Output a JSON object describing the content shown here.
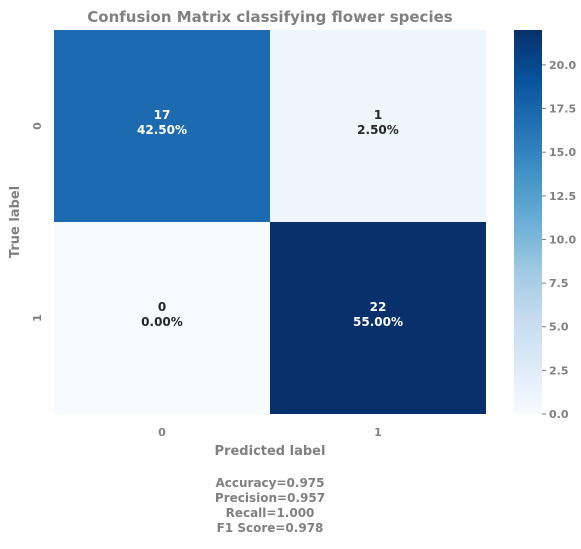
{
  "chart_data": {
    "type": "heatmap",
    "title": "Confusion Matrix classifying flower species",
    "xlabel": "Predicted label",
    "ylabel": "True label",
    "x_categories": [
      "0",
      "1"
    ],
    "y_categories": [
      "0",
      "1"
    ],
    "cells": [
      [
        {
          "count": "17",
          "percent": "42.50%",
          "value": 17
        },
        {
          "count": "1",
          "percent": "2.50%",
          "value": 1
        }
      ],
      [
        {
          "count": "0",
          "percent": "0.00%",
          "value": 0
        },
        {
          "count": "22",
          "percent": "55.00%",
          "value": 22
        }
      ]
    ],
    "colorbar": {
      "colormap": "Blues",
      "range": [
        0,
        22
      ],
      "ticks": [
        "0.0",
        "2.5",
        "5.0",
        "7.5",
        "10.0",
        "12.5",
        "15.0",
        "17.5",
        "20.0"
      ]
    },
    "metrics": [
      "Accuracy=0.975",
      "Precision=0.957",
      "Recall=1.000",
      "F1 Score=0.978"
    ]
  }
}
